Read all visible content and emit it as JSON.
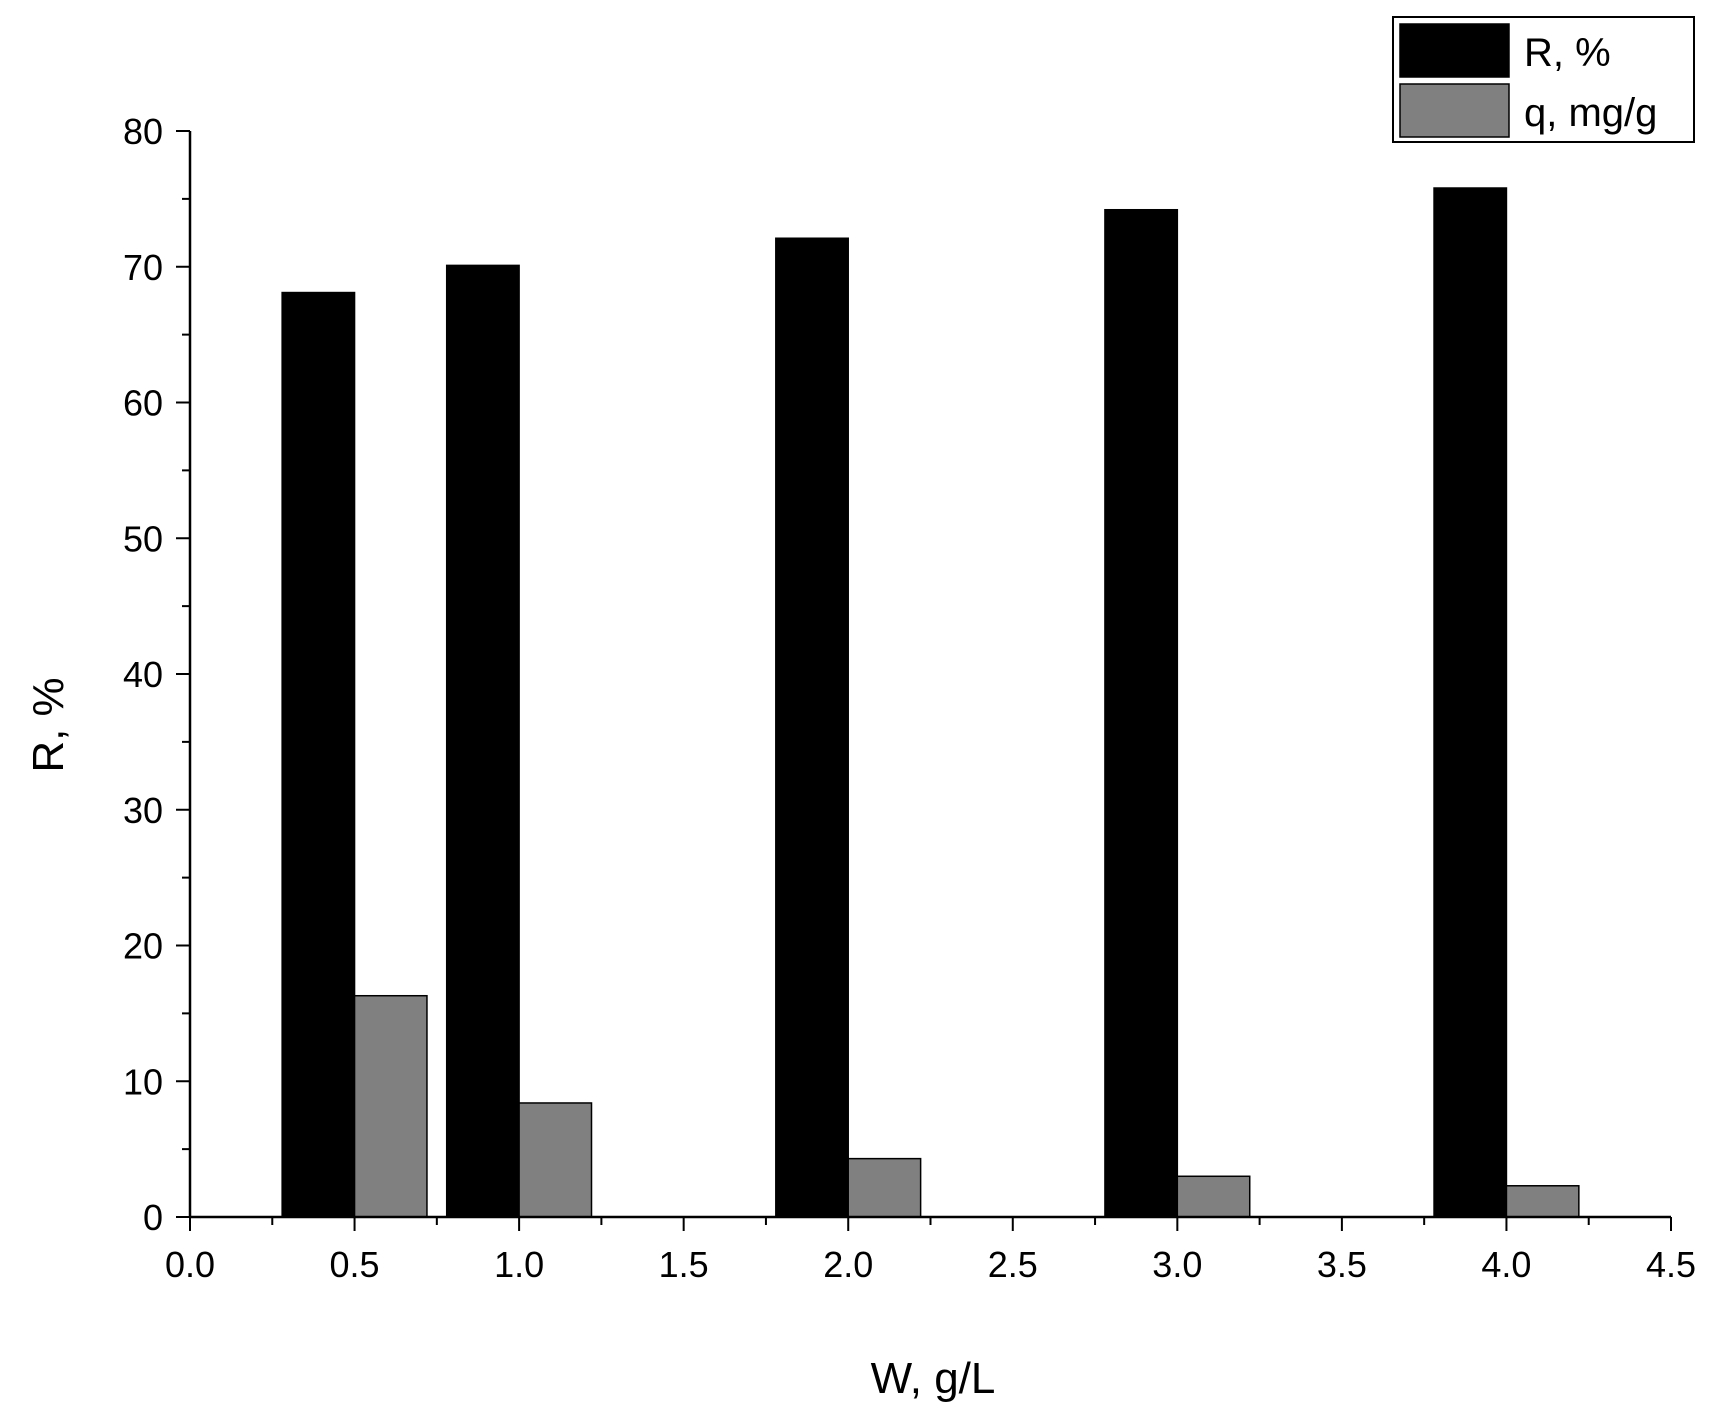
{
  "chart_data": {
    "type": "bar",
    "title": "",
    "xlabel": "W, g/L",
    "ylabel": "R, %",
    "xlim": [
      0.0,
      4.5
    ],
    "ylim": [
      0,
      80
    ],
    "x_ticks": [
      "0.0",
      "0.5",
      "1.0",
      "1.5",
      "2.0",
      "2.5",
      "3.0",
      "3.5",
      "4.0",
      "4.5"
    ],
    "y_ticks": [
      "0",
      "10",
      "20",
      "30",
      "40",
      "50",
      "60",
      "70",
      "80"
    ],
    "grid": false,
    "legend_position": "top-right",
    "categories": [
      0.5,
      1.0,
      2.0,
      3.0,
      4.0
    ],
    "series": [
      {
        "name": "R, %",
        "color": "#000000",
        "values": [
          68.1,
          70.1,
          72.1,
          74.2,
          75.8
        ]
      },
      {
        "name": "q, mg/g",
        "color": "#808080",
        "values": [
          16.3,
          8.4,
          4.3,
          3.0,
          2.3
        ]
      }
    ]
  }
}
